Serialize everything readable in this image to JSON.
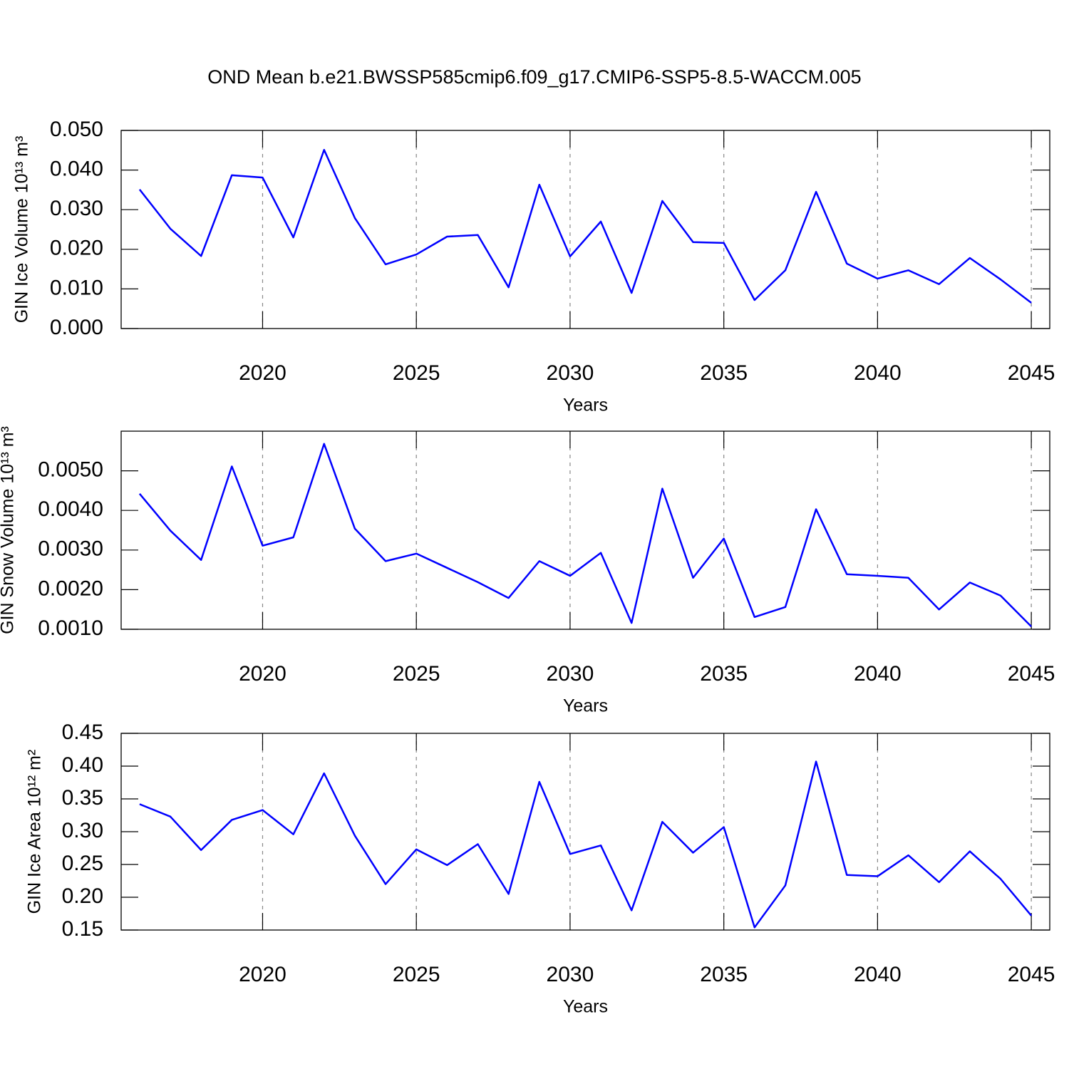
{
  "title": "OND Mean b.e21.BWSSP585cmip6.f09_g17.CMIP6-SSP5-8.5-WACCM.005",
  "chart_data": [
    {
      "type": "line",
      "ylabel": "GIN Ice Volume 10¹³ m³",
      "xlabel": "Years",
      "x": [
        2016,
        2017,
        2018,
        2019,
        2020,
        2021,
        2022,
        2023,
        2024,
        2025,
        2026,
        2027,
        2028,
        2029,
        2030,
        2031,
        2032,
        2033,
        2034,
        2035,
        2036,
        2037,
        2038,
        2039,
        2040,
        2041,
        2042,
        2043,
        2044,
        2045
      ],
      "values": [
        0.0351,
        0.0252,
        0.0183,
        0.0387,
        0.0381,
        0.023,
        0.0451,
        0.0279,
        0.0162,
        0.0187,
        0.0232,
        0.0236,
        0.0104,
        0.0363,
        0.0182,
        0.027,
        0.009,
        0.0322,
        0.0218,
        0.0216,
        0.0072,
        0.0147,
        0.0345,
        0.0164,
        0.0126,
        0.0147,
        0.0112,
        0.0178,
        0.0124,
        0.0065
      ],
      "color": "#0000ff",
      "xlim": [
        2015.4,
        2045.6
      ],
      "xticks": [
        2020,
        2025,
        2030,
        2035,
        2040,
        2045
      ],
      "ylim": [
        0,
        0.05
      ],
      "yticks": [
        {
          "value": 0,
          "label": "0.000"
        },
        {
          "value": 0.01,
          "label": "0.010"
        },
        {
          "value": 0.02,
          "label": "0.020"
        },
        {
          "value": 0.03,
          "label": "0.030"
        },
        {
          "value": 0.04,
          "label": "0.040"
        },
        {
          "value": 0.05,
          "label": "0.050"
        }
      ],
      "grid": true
    },
    {
      "type": "line",
      "ylabel": "GIN Snow Volume 10¹³ m³",
      "xlabel": "Years",
      "x": [
        2016,
        2017,
        2018,
        2019,
        2020,
        2021,
        2022,
        2023,
        2024,
        2025,
        2026,
        2027,
        2028,
        2029,
        2030,
        2031,
        2032,
        2033,
        2034,
        2035,
        2036,
        2037,
        2038,
        2039,
        2040,
        2041,
        2042,
        2043,
        2044,
        2045
      ],
      "values": [
        0.00442,
        0.00349,
        0.00275,
        0.00511,
        0.00311,
        0.00332,
        0.00568,
        0.00354,
        0.00272,
        0.00291,
        0.00255,
        0.00219,
        0.00179,
        0.00272,
        0.00235,
        0.00293,
        0.00116,
        0.00455,
        0.0023,
        0.00329,
        0.00131,
        0.00156,
        0.00403,
        0.00239,
        0.00235,
        0.0023,
        0.0015,
        0.00218,
        0.00185,
        0.00107
      ],
      "color": "#0000ff",
      "xlim": [
        2015.4,
        2045.6
      ],
      "xticks": [
        2020,
        2025,
        2030,
        2035,
        2040,
        2045
      ],
      "ylim": [
        0.001,
        0.006
      ],
      "yticks": [
        {
          "value": 0.001,
          "label": "0.0010"
        },
        {
          "value": 0.002,
          "label": "0.0020"
        },
        {
          "value": 0.003,
          "label": "0.0030"
        },
        {
          "value": 0.004,
          "label": "0.0040"
        },
        {
          "value": 0.005,
          "label": "0.0050"
        }
      ],
      "grid": true
    },
    {
      "type": "line",
      "ylabel": "GIN Ice Area 10¹² m²",
      "xlabel": "Years",
      "x": [
        2016,
        2017,
        2018,
        2019,
        2020,
        2021,
        2022,
        2023,
        2024,
        2025,
        2026,
        2027,
        2028,
        2029,
        2030,
        2031,
        2032,
        2033,
        2034,
        2035,
        2036,
        2037,
        2038,
        2039,
        2040,
        2041,
        2042,
        2043,
        2044,
        2045
      ],
      "values": [
        0.342,
        0.323,
        0.272,
        0.318,
        0.333,
        0.296,
        0.389,
        0.294,
        0.22,
        0.273,
        0.249,
        0.281,
        0.205,
        0.376,
        0.266,
        0.279,
        0.18,
        0.315,
        0.268,
        0.307,
        0.154,
        0.218,
        0.407,
        0.234,
        0.232,
        0.264,
        0.223,
        0.27,
        0.228,
        0.172
      ],
      "color": "#0000ff",
      "xlim": [
        2015.4,
        2045.6
      ],
      "xticks": [
        2020,
        2025,
        2030,
        2035,
        2040,
        2045
      ],
      "ylim": [
        0.15,
        0.45
      ],
      "yticks": [
        0.15,
        {
          "value": 0.2,
          "label": "0.20"
        },
        0.25,
        {
          "value": 0.3,
          "label": "0.30"
        },
        0.35,
        {
          "value": 0.4,
          "label": "0.40"
        },
        0.45
      ],
      "grid": true
    }
  ]
}
